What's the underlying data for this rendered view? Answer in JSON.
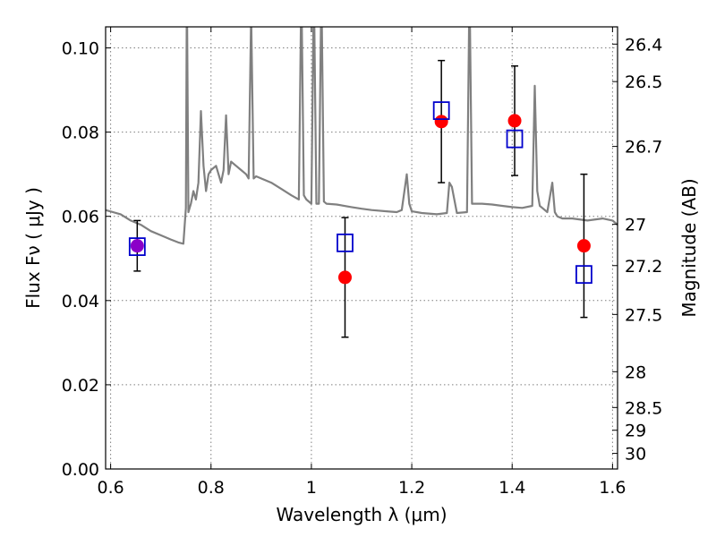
{
  "chart_data": {
    "type": "scatter",
    "title": "",
    "xlabel": "Wavelength  λ (μm)",
    "ylabel": "Flux  Fν  ( μJy )",
    "ylabel_right": "Magnitude (AB)",
    "xlim": [
      0.59,
      1.61
    ],
    "ylim": [
      0.0,
      0.105
    ],
    "grid": true,
    "legend": "none",
    "x_ticks": [
      0.6,
      0.8,
      1.0,
      1.2,
      1.4,
      1.6
    ],
    "x_tick_labels": [
      "0.6",
      "0.8",
      "1",
      "1.2",
      "1.4",
      "1.6"
    ],
    "y_ticks": [
      0.0,
      0.02,
      0.04,
      0.06,
      0.08,
      0.1
    ],
    "y_tick_labels": [
      "0.00",
      "0.02",
      "0.04",
      "0.06",
      "0.08",
      "0.10"
    ],
    "mag_ticks": [
      {
        "label": "26.4",
        "flux": 0.1009
      },
      {
        "label": "26.5",
        "flux": 0.092
      },
      {
        "label": "26.7",
        "flux": 0.0766
      },
      {
        "label": "27",
        "flux": 0.0581
      },
      {
        "label": "27.2",
        "flux": 0.0483
      },
      {
        "label": "27.5",
        "flux": 0.0367
      },
      {
        "label": "28",
        "flux": 0.0231
      },
      {
        "label": "28.5",
        "flux": 0.0146
      },
      {
        "label": "29",
        "flux": 0.0092
      },
      {
        "label": "30",
        "flux": 0.0037
      }
    ],
    "colors": {
      "model": "#808080",
      "observed": "#ff0000",
      "synthetic": "#0000cc",
      "errorbar": "#000000",
      "overlap": "#8b00c8"
    },
    "series": [
      {
        "key": "model",
        "kind": "line",
        "x": [
          0.59,
          0.62,
          0.64,
          0.66,
          0.68,
          0.7,
          0.72,
          0.735,
          0.745,
          0.75,
          0.752,
          0.755,
          0.76,
          0.765,
          0.77,
          0.775,
          0.78,
          0.785,
          0.79,
          0.795,
          0.8,
          0.81,
          0.82,
          0.825,
          0.83,
          0.835,
          0.84,
          0.85,
          0.86,
          0.87,
          0.875,
          0.88,
          0.885,
          0.89,
          0.9,
          0.92,
          0.94,
          0.96,
          0.975,
          0.98,
          0.985,
          0.99,
          1.0,
          1.005,
          1.01,
          1.015,
          1.02,
          1.025,
          1.03,
          1.05,
          1.08,
          1.1,
          1.12,
          1.15,
          1.17,
          1.18,
          1.19,
          1.195,
          1.2,
          1.22,
          1.25,
          1.27,
          1.275,
          1.28,
          1.29,
          1.31,
          1.315,
          1.32,
          1.34,
          1.36,
          1.38,
          1.4,
          1.42,
          1.44,
          1.445,
          1.45,
          1.455,
          1.46,
          1.47,
          1.48,
          1.485,
          1.49,
          1.5,
          1.52,
          1.55,
          1.58,
          1.6,
          1.61
        ],
        "y": [
          0.0615,
          0.0605,
          0.059,
          0.058,
          0.0565,
          0.0555,
          0.0545,
          0.0538,
          0.0535,
          0.062,
          0.115,
          0.061,
          0.063,
          0.066,
          0.064,
          0.068,
          0.085,
          0.072,
          0.066,
          0.07,
          0.071,
          0.072,
          0.068,
          0.071,
          0.084,
          0.07,
          0.073,
          0.072,
          0.071,
          0.07,
          0.069,
          0.108,
          0.069,
          0.0695,
          0.069,
          0.068,
          0.0665,
          0.065,
          0.064,
          0.115,
          0.065,
          0.064,
          0.063,
          0.115,
          0.063,
          0.063,
          0.115,
          0.0635,
          0.063,
          0.0628,
          0.0622,
          0.0618,
          0.0615,
          0.0612,
          0.061,
          0.0615,
          0.07,
          0.063,
          0.0612,
          0.0608,
          0.0605,
          0.0608,
          0.068,
          0.067,
          0.0608,
          0.061,
          0.115,
          0.063,
          0.063,
          0.0628,
          0.0625,
          0.0622,
          0.062,
          0.0625,
          0.091,
          0.066,
          0.0625,
          0.062,
          0.061,
          0.068,
          0.061,
          0.06,
          0.0595,
          0.0595,
          0.059,
          0.0595,
          0.059,
          0.058
        ]
      },
      {
        "key": "observed",
        "kind": "points_with_errors",
        "x": [
          0.653,
          1.067,
          1.259,
          1.405,
          1.543
        ],
        "y": [
          0.053,
          0.0455,
          0.0825,
          0.0827,
          0.053
        ],
        "yerr": [
          0.006,
          0.0142,
          0.0145,
          0.013,
          0.017
        ]
      },
      {
        "key": "synthetic",
        "kind": "squares",
        "x": [
          0.653,
          1.067,
          1.259,
          1.405,
          1.543
        ],
        "y": [
          0.0528,
          0.0537,
          0.0851,
          0.0784,
          0.0462
        ]
      }
    ]
  }
}
